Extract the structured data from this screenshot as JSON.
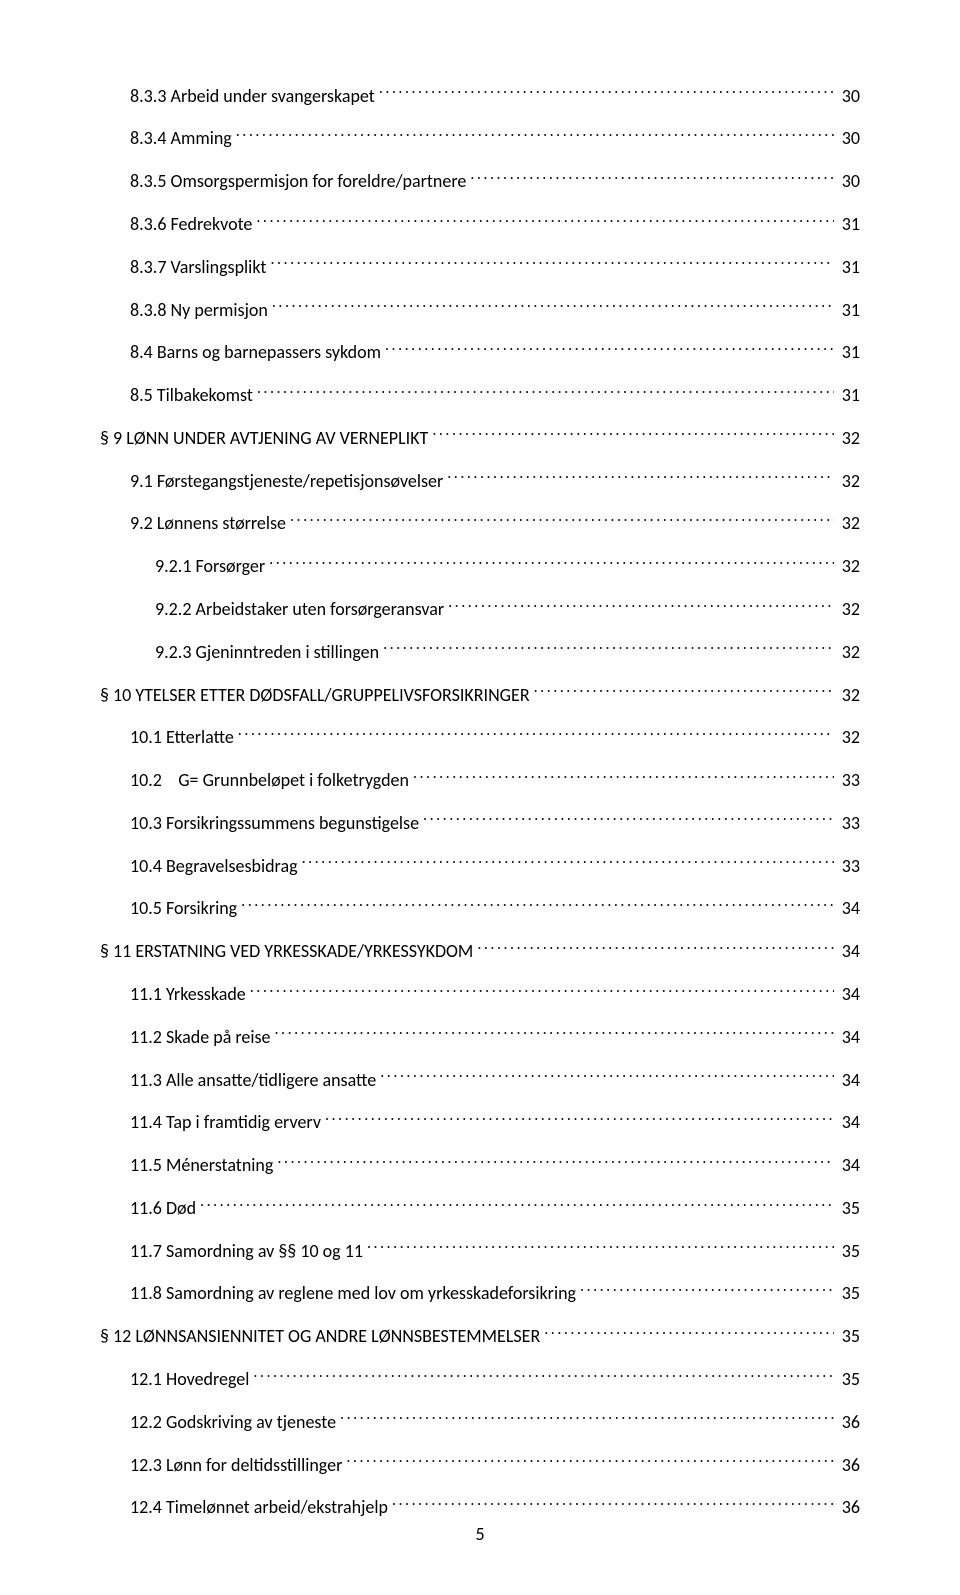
{
  "page_number": "5",
  "entries": [
    {
      "indent": 1,
      "title": "8.3.3 Arbeid under svangerskapet",
      "page": "30"
    },
    {
      "indent": 1,
      "title": "8.3.4 Amming",
      "page": "30"
    },
    {
      "indent": 1,
      "title": "8.3.5 Omsorgspermisjon for foreldre/partnere",
      "page": "30"
    },
    {
      "indent": 1,
      "title": "8.3.6 Fedrekvote",
      "page": "31"
    },
    {
      "indent": 1,
      "title": "8.3.7 Varslingsplikt",
      "page": "31"
    },
    {
      "indent": 1,
      "title": "8.3.8 Ny permisjon",
      "page": "31"
    },
    {
      "indent": 1,
      "title": "8.4 Barns og barnepassers sykdom",
      "page": "31"
    },
    {
      "indent": 1,
      "title": "8.5 Tilbakekomst",
      "page": "31"
    },
    {
      "indent": 0,
      "title": "§ 9 LØNN UNDER AVTJENING AV VERNEPLIKT",
      "page": "32"
    },
    {
      "indent": 1,
      "title": "9.1 Førstegangstjeneste/repetisjonsøvelser",
      "page": "32"
    },
    {
      "indent": 1,
      "title": "9.2 Lønnens størrelse",
      "page": "32"
    },
    {
      "indent": 2,
      "title": "9.2.1 Forsørger",
      "page": "32"
    },
    {
      "indent": 2,
      "title": "9.2.2 Arbeidstaker uten forsørgeransvar",
      "page": "32"
    },
    {
      "indent": 2,
      "title": "9.2.3 Gjeninntreden i stillingen",
      "page": "32"
    },
    {
      "indent": 0,
      "title": "§ 10 YTELSER ETTER DØDSFALL/GRUPPELIVSFORSIKRINGER",
      "page": "32"
    },
    {
      "indent": 1,
      "title": "10.1 Etterlatte",
      "page": "32"
    },
    {
      "indent": 1,
      "title": "10.2    G= Grunnbeløpet i folketrygden",
      "page": "33"
    },
    {
      "indent": 1,
      "title": "10.3 Forsikringssummens begunstigelse",
      "page": "33"
    },
    {
      "indent": 1,
      "title": "10.4 Begravelsesbidrag",
      "page": "33"
    },
    {
      "indent": 1,
      "title": "10.5 Forsikring",
      "page": "34"
    },
    {
      "indent": 0,
      "title": "§ 11 ERSTATNING VED YRKESSKADE/YRKESSYKDOM",
      "page": "34"
    },
    {
      "indent": 1,
      "title": "11.1 Yrkesskade",
      "page": "34"
    },
    {
      "indent": 1,
      "title": "11.2 Skade på reise",
      "page": "34"
    },
    {
      "indent": 1,
      "title": "11.3 Alle ansatte/tidligere ansatte",
      "page": "34"
    },
    {
      "indent": 1,
      "title": "11.4 Tap i framtidig erverv",
      "page": "34"
    },
    {
      "indent": 1,
      "title": "11.5 Ménerstatning",
      "page": "34"
    },
    {
      "indent": 1,
      "title": "11.6 Død",
      "page": "35"
    },
    {
      "indent": 1,
      "title": "11.7 Samordning av §§ 10 og 11",
      "page": "35"
    },
    {
      "indent": 1,
      "title": "11.8 Samordning av reglene med lov om yrkesskadeforsikring",
      "page": "35"
    },
    {
      "indent": 0,
      "title": "§ 12 LØNNSANSIENNITET OG ANDRE LØNNSBESTEMMELSER",
      "page": "35"
    },
    {
      "indent": 1,
      "title": "12.1 Hovedregel",
      "page": "35"
    },
    {
      "indent": 1,
      "title": "12.2 Godskriving av tjeneste",
      "page": "36"
    },
    {
      "indent": 1,
      "title": "12.3 Lønn for deltidsstillinger",
      "page": "36"
    },
    {
      "indent": 1,
      "title": "12.4 Timelønnet arbeid/ekstrahjelp",
      "page": "36"
    }
  ]
}
